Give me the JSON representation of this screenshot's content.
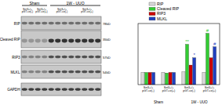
{
  "blot": {
    "groups": [
      "Sham",
      "1W - UUO"
    ],
    "lanes": [
      "Sirt3+/+ pGT-ce(-)",
      "Sirt3+/+ pGT-ce(+)",
      "Sirt3+/+ pGT-ce(-)",
      "Sirt3+/+ pGT-ce(+)"
    ],
    "rows": [
      {
        "label": "RIP",
        "mw": "78kD"
      },
      {
        "label": "Cleaved RIP",
        "mw": "35kD"
      },
      {
        "label": "RIP3",
        "mw": "57kD"
      },
      {
        "label": "MLKL",
        "mw": "54kD"
      },
      {
        "label": "GAPDH"
      }
    ]
  },
  "chart_data": {
    "type": "bar",
    "categories": [
      "Sirt3+/+ pGT-ce(-)",
      "Sirt3+/+ pGT-ce(+)",
      "Sirt3+/+ pGT-ce(-)",
      "Sirt3+/+ pGT-ce(+)"
    ],
    "groups": [
      {
        "label": "Sham",
        "categories": [
          0,
          1
        ]
      },
      {
        "label": "1W - UUO",
        "categories": [
          2,
          3
        ]
      }
    ],
    "series": [
      {
        "name": "RIP",
        "color": "#d9d9d9",
        "values": [
          1,
          1,
          1.05,
          1
        ]
      },
      {
        "name": "Cleaved RIP",
        "color": "#33cc33",
        "values": [
          1,
          0.95,
          3.3,
          4.2
        ]
      },
      {
        "name": "RIP3",
        "color": "#cc0000",
        "values": [
          1,
          1,
          1.6,
          2.2
        ]
      },
      {
        "name": "MLKL",
        "color": "#1f3fbf",
        "values": [
          1,
          1,
          2.2,
          3.1
        ]
      }
    ],
    "annotations": [
      {
        "text": "**",
        "category": 2,
        "series": 1
      },
      {
        "text": "*",
        "category": 2,
        "series": 3
      },
      {
        "text": "#",
        "category": 3,
        "series": 1
      },
      {
        "text": "#",
        "category": 3,
        "series": 3
      }
    ],
    "ylim": [
      0,
      5
    ],
    "yticks": [],
    "tick_labels": "x",
    "legend": "top-left",
    "grid": false
  }
}
